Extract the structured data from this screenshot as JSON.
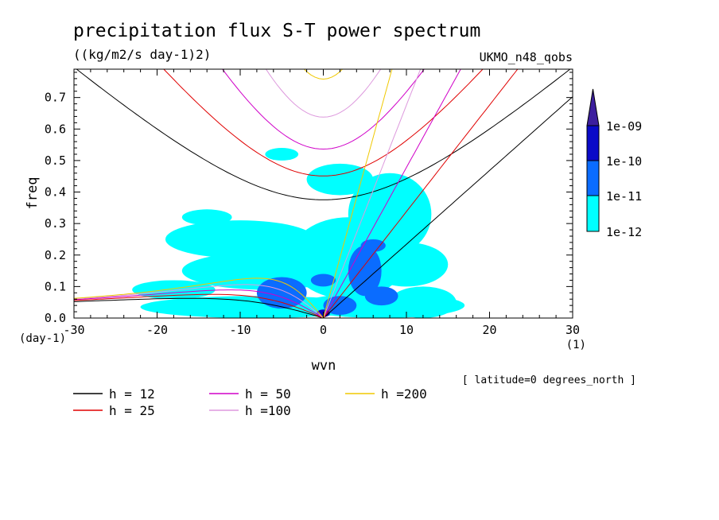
{
  "chart_data": {
    "type": "heatmap",
    "title": "precipitation flux S-T power spectrum",
    "subtitle": "((kg/m2/s day-1)2)",
    "model_label": "UKMO_n48_qobs",
    "xlabel": "wvn",
    "x_unit": "(1)",
    "ylabel": "freq",
    "y_unit": "(day-1)",
    "xlim": [
      -30,
      30
    ],
    "ylim": [
      0,
      0.79
    ],
    "x_ticks": [
      -30,
      -20,
      -10,
      0,
      10,
      20,
      30
    ],
    "y_ticks": [
      0.0,
      0.1,
      0.2,
      0.3,
      0.4,
      0.5,
      0.6,
      0.7
    ],
    "x_tick_labels": [
      "-30",
      "-20",
      "-10",
      "0",
      "10",
      "20",
      "30"
    ],
    "y_tick_labels": [
      "0.0",
      "0.1",
      "0.2",
      "0.3",
      "0.4",
      "0.5",
      "0.6",
      "0.7"
    ],
    "annotation": "[ latitude=0 degrees_north ]",
    "colorbar": {
      "levels": [
        "1e-12",
        "1e-11",
        "1e-10",
        "1e-09"
      ],
      "colors": [
        "#00ffff",
        "#0a6cff",
        "#0a0ac8",
        "#3c1e9e"
      ]
    },
    "contour_regions": [
      {
        "level": 0,
        "cx": 7,
        "cy": 0.04,
        "rx": 10,
        "ry": 0.04
      },
      {
        "level": 0,
        "cx": -8,
        "cy": 0.035,
        "rx": 14,
        "ry": 0.035
      },
      {
        "level": 0,
        "cx": 3,
        "cy": 0.19,
        "rx": 7,
        "ry": 0.13
      },
      {
        "level": 0,
        "cx": 8,
        "cy": 0.33,
        "rx": 5,
        "ry": 0.13
      },
      {
        "level": 0,
        "cx": -10,
        "cy": 0.25,
        "rx": 9,
        "ry": 0.06
      },
      {
        "level": 0,
        "cx": -7,
        "cy": 0.15,
        "rx": 10,
        "ry": 0.06
      },
      {
        "level": 0,
        "cx": 10,
        "cy": 0.17,
        "rx": 5,
        "ry": 0.07
      },
      {
        "level": 0,
        "cx": 12,
        "cy": 0.05,
        "rx": 4,
        "ry": 0.05
      },
      {
        "level": 0,
        "cx": -18,
        "cy": 0.09,
        "rx": 5,
        "ry": 0.03
      },
      {
        "level": 0,
        "cx": 2,
        "cy": 0.44,
        "rx": 4,
        "ry": 0.05
      },
      {
        "level": 0,
        "cx": -14,
        "cy": 0.32,
        "rx": 3,
        "ry": 0.025
      },
      {
        "level": 0,
        "cx": -5,
        "cy": 0.52,
        "rx": 2,
        "ry": 0.02
      },
      {
        "level": 1,
        "cx": -5,
        "cy": 0.08,
        "rx": 3,
        "ry": 0.05
      },
      {
        "level": 1,
        "cx": 5,
        "cy": 0.15,
        "rx": 2,
        "ry": 0.08
      },
      {
        "level": 1,
        "cx": 2,
        "cy": 0.04,
        "rx": 2,
        "ry": 0.03
      },
      {
        "level": 1,
        "cx": 7,
        "cy": 0.07,
        "rx": 2,
        "ry": 0.03
      },
      {
        "level": 1,
        "cx": 6,
        "cy": 0.23,
        "rx": 1.5,
        "ry": 0.02
      },
      {
        "level": 1,
        "cx": 0,
        "cy": 0.12,
        "rx": 1.5,
        "ry": 0.02
      },
      {
        "level": 2,
        "cx": 0,
        "cy": 0.015,
        "rx": 0.8,
        "ry": 0.012
      }
    ],
    "dispersion_curves": [
      {
        "label": "h = 12",
        "h": 12,
        "color": "#000000"
      },
      {
        "label": "h = 25",
        "h": 25,
        "color": "#e00000"
      },
      {
        "label": "h = 50",
        "h": 50,
        "color": "#d000c8"
      },
      {
        "label": "h =100",
        "h": 100,
        "color": "#dd99dd"
      },
      {
        "label": "h =200",
        "h": 200,
        "color": "#f0c800"
      }
    ]
  }
}
